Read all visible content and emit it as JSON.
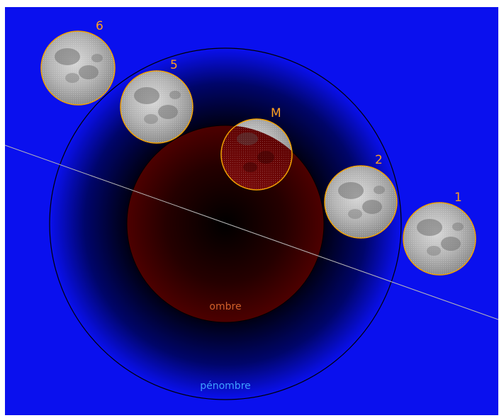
{
  "labels": {
    "umbra": "ombre",
    "penumbra": "pénombre"
  },
  "colors": {
    "sky": "#0a10ee",
    "penumbra_center": "#000000",
    "umbra_edge": "#4d0000",
    "moon_outline": "#f0a000",
    "moon_label": "#ffa020",
    "umbra_label": "#d0602a",
    "penumbra_label": "#3f9fff",
    "ecliptic": "#b8b8b8"
  },
  "moons": [
    {
      "label": "6",
      "phase": "outside"
    },
    {
      "label": "5",
      "phase": "penumbral"
    },
    {
      "label": "M",
      "phase": "maximum"
    },
    {
      "label": "2",
      "phase": "penumbral"
    },
    {
      "label": "1",
      "phase": "outside"
    }
  ]
}
